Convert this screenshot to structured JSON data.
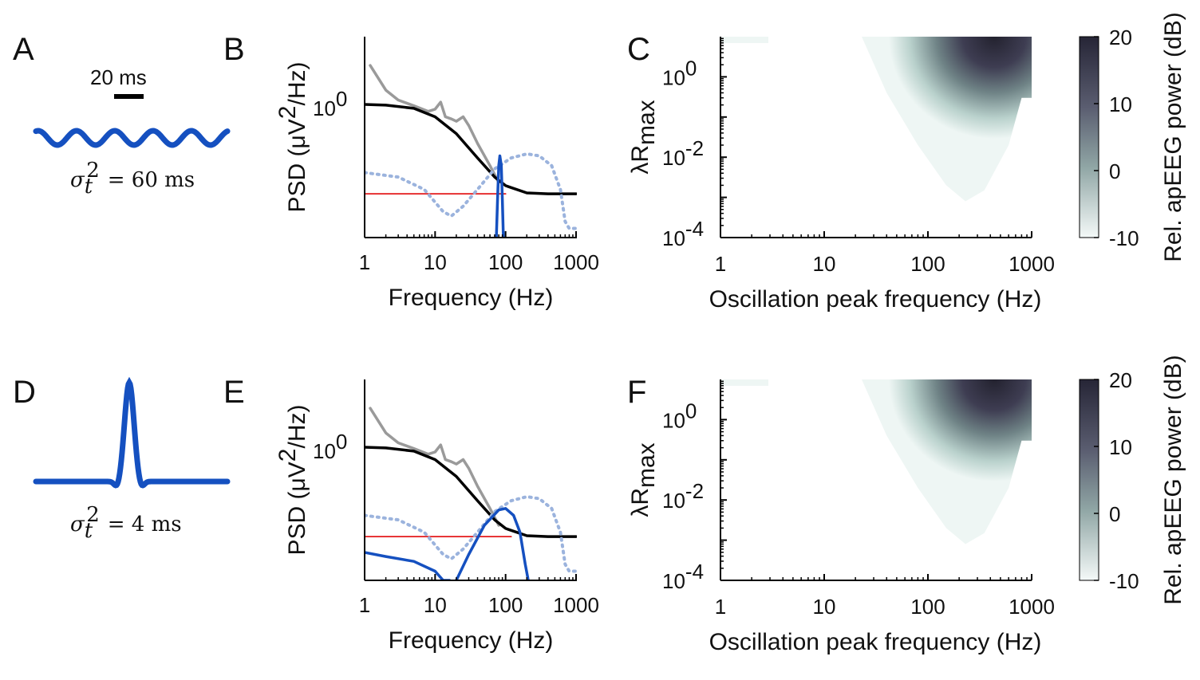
{
  "panel_labels": {
    "A": "A",
    "B": "B",
    "C": "C",
    "D": "D",
    "E": "E",
    "F": "F"
  },
  "panel_a": {
    "scale_bar": "20 ms",
    "sigma_sym": "σ",
    "sigma_sub": "t",
    "sigma_sup": "2",
    "sigma_rest": "= 60 ms"
  },
  "panel_d": {
    "sigma_sym": "σ",
    "sigma_sub": "t",
    "sigma_sup": "2",
    "sigma_rest": "= 4 ms"
  },
  "psd_axes": {
    "ylabel_pre": "PSD (μV",
    "ylabel_sup": "2",
    "ylabel_post": "/Hz)",
    "ytick_base": "10",
    "ytick_exp": "0",
    "xlabel": "Frequency (Hz)",
    "xticks": [
      "1",
      "10",
      "100",
      "1000"
    ]
  },
  "heat_axes": {
    "xlabel": "Oscillation peak frequency (Hz)",
    "ylabel_main": "λR",
    "ylabel_sub": "max",
    "xticks": [
      "1",
      "10",
      "100",
      "1000"
    ],
    "yticks": [
      {
        "base": "10",
        "exp": "0"
      },
      {
        "base": "10",
        "exp": "-2"
      },
      {
        "base": "10",
        "exp": "-4"
      }
    ],
    "colorbar_label": "Rel. apEEG power (dB)",
    "colorbar_ticks": [
      "20",
      "10",
      "0",
      "-10"
    ]
  },
  "colors": {
    "blue": "#1550c0",
    "light_blue": "#9bb3dd",
    "gray": "#9a9a9a",
    "black": "#000000",
    "red": "#e41a1c",
    "heat_dark": "#2b2a3a",
    "heat_mid": "#8a9e9e",
    "heat_light": "#e3efec"
  },
  "chart_data": [
    {
      "type": "line",
      "panel": "B",
      "x_scale": "log",
      "y_scale": "log",
      "xlim": [
        1,
        1000
      ],
      "xlabel": "Frequency (Hz)",
      "ylabel": "PSD (μV2/Hz)",
      "series": [
        {
          "style": "gray",
          "x": [
            1.2,
            2,
            3,
            5,
            8,
            10,
            12,
            14,
            17,
            20,
            25,
            30,
            40,
            60,
            80
          ],
          "y": [
            5,
            1.8,
            1.2,
            0.95,
            0.75,
            0.82,
            1.1,
            0.6,
            0.55,
            0.5,
            0.6,
            0.42,
            0.2,
            0.08,
            0.04
          ]
        },
        {
          "style": "black",
          "x": [
            1,
            2,
            5,
            10,
            20,
            40,
            70,
            100,
            200,
            400,
            700,
            1000
          ],
          "y": [
            1.0,
            0.97,
            0.85,
            0.6,
            0.3,
            0.11,
            0.05,
            0.035,
            0.026,
            0.025,
            0.025,
            0.025
          ]
        },
        {
          "style": "red",
          "x": [
            1,
            100
          ],
          "y": [
            0.025,
            0.025
          ]
        },
        {
          "style": "light_blue_dotted",
          "x": [
            1,
            3,
            7,
            13,
            17,
            25,
            40,
            70,
            120,
            200,
            300,
            450,
            600,
            700,
            800,
            1000
          ],
          "y": [
            0.06,
            0.05,
            0.03,
            0.012,
            0.01,
            0.015,
            0.03,
            0.07,
            0.11,
            0.13,
            0.12,
            0.08,
            0.03,
            0.008,
            0.006,
            0.006
          ]
        },
        {
          "style": "blue",
          "x": [
            74,
            77,
            80,
            83,
            87,
            90,
            93
          ],
          "y": [
            0.001,
            0.02,
            0.08,
            0.12,
            0.08,
            0.02,
            0.001
          ]
        }
      ]
    },
    {
      "type": "line",
      "panel": "E",
      "x_scale": "log",
      "y_scale": "log",
      "xlim": [
        1,
        1000
      ],
      "xlabel": "Frequency (Hz)",
      "ylabel": "PSD (μV2/Hz)",
      "series": [
        {
          "style": "gray",
          "x": [
            1.2,
            2,
            3,
            5,
            8,
            10,
            12,
            14,
            17,
            20,
            25,
            30,
            40,
            60,
            80
          ],
          "y": [
            5,
            1.8,
            1.2,
            0.95,
            0.75,
            0.82,
            1.1,
            0.6,
            0.55,
            0.5,
            0.6,
            0.42,
            0.2,
            0.08,
            0.04
          ]
        },
        {
          "style": "black",
          "x": [
            1,
            2,
            5,
            10,
            20,
            40,
            70,
            100,
            200,
            400,
            700,
            1000
          ],
          "y": [
            1.0,
            0.97,
            0.85,
            0.6,
            0.3,
            0.11,
            0.05,
            0.035,
            0.026,
            0.025,
            0.025,
            0.025
          ]
        },
        {
          "style": "red",
          "x": [
            1,
            120
          ],
          "y": [
            0.025,
            0.025
          ]
        },
        {
          "style": "light_blue_dotted",
          "x": [
            1,
            3,
            7,
            13,
            17,
            25,
            40,
            70,
            120,
            200,
            300,
            450,
            600,
            700,
            800,
            1000
          ],
          "y": [
            0.06,
            0.05,
            0.03,
            0.012,
            0.01,
            0.015,
            0.03,
            0.07,
            0.11,
            0.13,
            0.12,
            0.08,
            0.03,
            0.008,
            0.006,
            0.006
          ]
        },
        {
          "style": "blue",
          "x": [
            1,
            2,
            5,
            10,
            13,
            16
          ],
          "y": [
            0.013,
            0.011,
            0.009,
            0.006,
            0.004,
            0.003
          ]
        },
        {
          "style": "blue",
          "x": [
            20,
            30,
            50,
            80,
            100,
            130,
            160,
            190,
            210
          ],
          "y": [
            0.003,
            0.012,
            0.04,
            0.075,
            0.08,
            0.06,
            0.03,
            0.008,
            0.003
          ]
        }
      ]
    },
    {
      "type": "heatmap",
      "panel": "C",
      "x_scale": "log",
      "y_scale": "log",
      "xlim": [
        1,
        1000
      ],
      "ylim": [
        0.0001,
        10
      ],
      "xlabel": "Oscillation peak frequency (Hz)",
      "ylabel": "λRmax",
      "colorbar": {
        "label": "Rel. apEEG power (dB)",
        "range": [
          -10,
          20
        ]
      },
      "region_boundary": {
        "x": [
          23,
          40,
          80,
          150,
          230,
          350,
          600,
          800,
          1000
        ],
        "y_min": [
          10,
          0.4,
          0.02,
          0.002,
          0.0008,
          0.0015,
          0.02,
          0.3,
          0.3
        ]
      },
      "peak": {
        "x": 230,
        "y": 10,
        "value": 20
      }
    },
    {
      "type": "heatmap",
      "panel": "F",
      "x_scale": "log",
      "y_scale": "log",
      "xlim": [
        1,
        1000
      ],
      "ylim": [
        0.0001,
        10
      ],
      "xlabel": "Oscillation peak frequency (Hz)",
      "ylabel": "λRmax",
      "colorbar": {
        "label": "Rel. apEEG power (dB)",
        "range": [
          -10,
          20
        ]
      },
      "region_boundary": {
        "x": [
          23,
          40,
          80,
          150,
          230,
          350,
          600,
          800,
          1000
        ],
        "y_min": [
          10,
          0.4,
          0.02,
          0.002,
          0.0008,
          0.0015,
          0.02,
          0.3,
          0.3
        ]
      },
      "peak": {
        "x": 230,
        "y": 10,
        "value": 20
      }
    }
  ]
}
